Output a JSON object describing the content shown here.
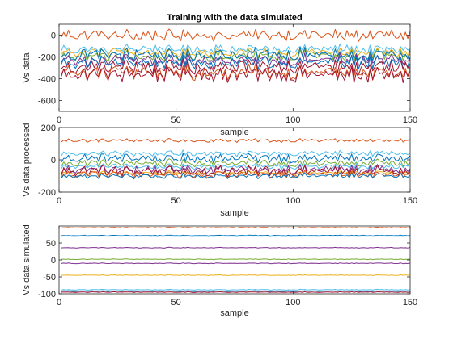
{
  "figure": {
    "background": "#ffffff",
    "colors": [
      "#0072bd",
      "#d95319",
      "#edb120",
      "#7e2f8e",
      "#77ac30",
      "#4dbeee",
      "#a2142f"
    ]
  },
  "chart_data": [
    {
      "type": "line",
      "title": "Training with the data simulated",
      "xlabel": "sample",
      "ylabel": "Vs data",
      "xlim": [
        0,
        150
      ],
      "ylim": [
        -700,
        100
      ],
      "xticks": [
        0,
        50,
        100,
        150
      ],
      "yticks": [
        0,
        -200,
        -400,
        -600
      ],
      "grid": false,
      "legend": "none",
      "series_count": 10,
      "x": [
        1,
        150
      ],
      "series": [
        {
          "color": "#d95319",
          "base": 0,
          "noise": 45
        },
        {
          "color": "#4dbeee",
          "base": -130,
          "noise": 40
        },
        {
          "color": "#edb120",
          "base": -160,
          "noise": 40
        },
        {
          "color": "#77ac30",
          "base": -190,
          "noise": 45
        },
        {
          "color": "#0072bd",
          "base": -180,
          "noise": 55
        },
        {
          "color": "#7e2f8e",
          "base": -230,
          "noise": 50
        },
        {
          "color": "#0072bd",
          "base": -250,
          "noise": 55
        },
        {
          "color": "#a2142f",
          "base": -290,
          "noise": 60
        },
        {
          "color": "#d95319",
          "base": -340,
          "noise": 60
        },
        {
          "color": "#a2142f",
          "base": -360,
          "noise": 65
        }
      ]
    },
    {
      "type": "line",
      "title": "",
      "xlabel": "sample",
      "ylabel": "Vs data processed",
      "xlim": [
        0,
        150
      ],
      "ylim": [
        -200,
        200
      ],
      "xticks": [
        0,
        50,
        100,
        150
      ],
      "yticks": [
        200,
        0,
        -200
      ],
      "grid": false,
      "legend": "none",
      "series_count": 10,
      "x": [
        1,
        150
      ],
      "series": [
        {
          "color": "#d95319",
          "base": 120,
          "noise": 10
        },
        {
          "color": "#4dbeee",
          "base": 40,
          "noise": 15
        },
        {
          "color": "#0072bd",
          "base": 10,
          "noise": 25
        },
        {
          "color": "#77ac30",
          "base": -20,
          "noise": 20
        },
        {
          "color": "#4dbeee",
          "base": -40,
          "noise": 15
        },
        {
          "color": "#7e2f8e",
          "base": -60,
          "noise": 25
        },
        {
          "color": "#edb120",
          "base": -80,
          "noise": 10
        },
        {
          "color": "#a2142f",
          "base": -70,
          "noise": 30
        },
        {
          "color": "#d95319",
          "base": -90,
          "noise": 20
        },
        {
          "color": "#0072bd",
          "base": -100,
          "noise": 15
        }
      ]
    },
    {
      "type": "line",
      "title": "",
      "xlabel": "sample",
      "ylabel": "Vs data simulated",
      "xlim": [
        0,
        150
      ],
      "ylim": [
        -100,
        100
      ],
      "xticks": [
        0,
        50,
        100,
        150
      ],
      "yticks": [
        50,
        0,
        -50,
        -100
      ],
      "grid": false,
      "legend": "none",
      "series_count": 10,
      "x": [
        1,
        150
      ],
      "series": [
        {
          "color": "#d95319",
          "base": 95,
          "noise": 1
        },
        {
          "color": "#0072bd",
          "base": 72,
          "noise": 1
        },
        {
          "color": "#4dbeee",
          "base": 70,
          "noise": 1
        },
        {
          "color": "#7e2f8e",
          "base": 36,
          "noise": 1
        },
        {
          "color": "#77ac30",
          "base": 2,
          "noise": 1
        },
        {
          "color": "#7e2f8e",
          "base": -10,
          "noise": 1
        },
        {
          "color": "#edb120",
          "base": -45,
          "noise": 1
        },
        {
          "color": "#4dbeee",
          "base": -88,
          "noise": 1
        },
        {
          "color": "#0072bd",
          "base": -92,
          "noise": 1
        },
        {
          "color": "#a2142f",
          "base": -95,
          "noise": 1
        }
      ]
    }
  ]
}
